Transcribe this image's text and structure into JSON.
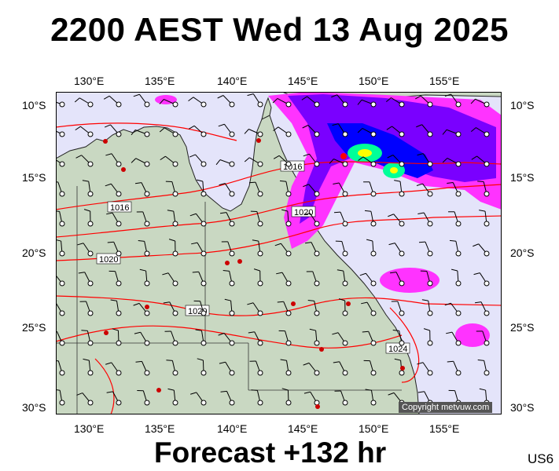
{
  "title": "2200 AEST Wed 13 Aug 2025",
  "footer": "Forecast +132 hr",
  "tag": "US6",
  "copyright": "Copyright metvuw.com",
  "lon_labels": [
    "130°E",
    "135°E",
    "140°E",
    "145°E",
    "150°E",
    "155°E"
  ],
  "lat_labels": [
    "10°S",
    "15°S",
    "20°S",
    "25°S",
    "30°S"
  ],
  "isobar_labels": [
    "1016",
    "1016",
    "1020",
    "1020",
    "1020",
    "1024"
  ],
  "colors": {
    "land": "#c9d8c2",
    "sea": "#e4e4fa",
    "isobar": "#ff0000",
    "rain_light": "#ff33ff",
    "rain_mid": "#7a00ff",
    "rain_heavy": "#0000ff",
    "rain_peak": "#00ffaa"
  }
}
